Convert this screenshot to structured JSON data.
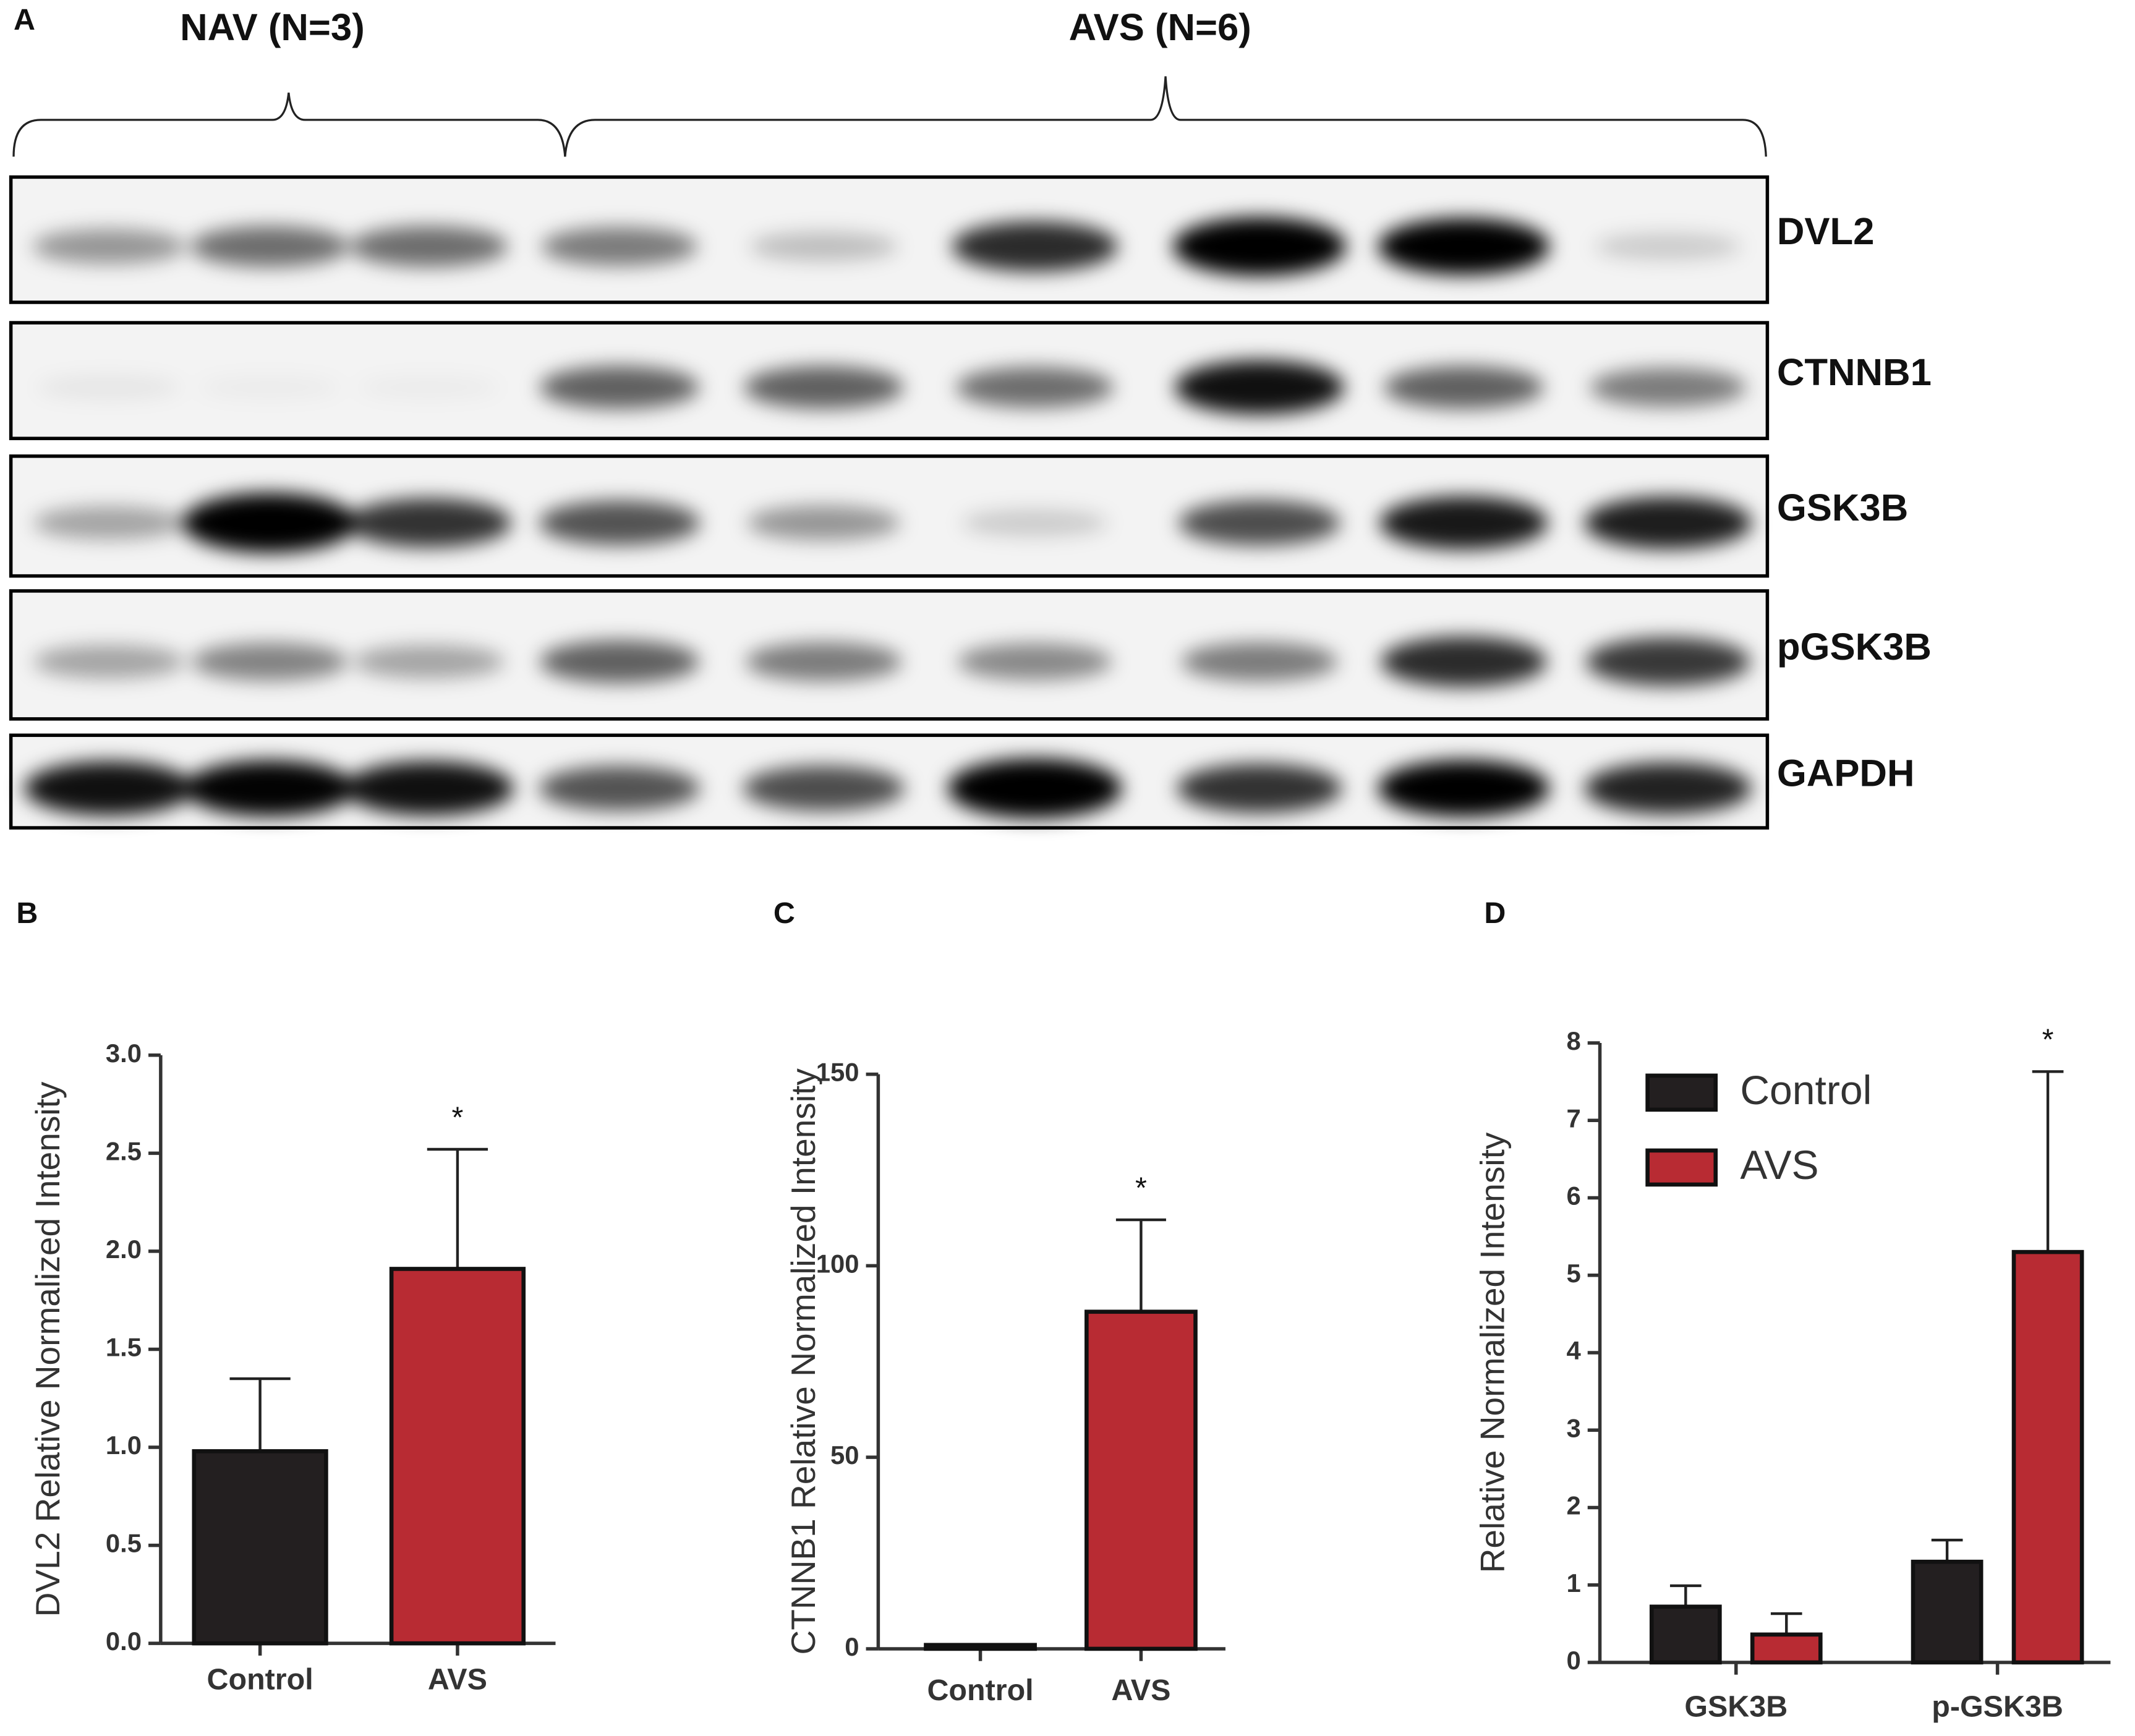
{
  "panel_a": {
    "letter": "A",
    "groups": [
      "NAV (N=3)",
      "AVS (N=6)"
    ],
    "proteins": [
      "DVL2",
      "CTNNB1",
      "GSK3B",
      "pGSK3B",
      "GAPDH"
    ]
  },
  "chart_data": [
    {
      "type": "bar",
      "panel": "B",
      "ylabel": "DVL2 Relative Normalized  Intensity",
      "categories": [
        "Control",
        "AVS"
      ],
      "values": [
        0.98,
        1.91
      ],
      "errors": [
        0.37,
        0.61
      ],
      "colors": [
        "#231f20",
        "#b82b33"
      ],
      "significance_marker": "*",
      "significant": [
        false,
        true
      ],
      "ylim": [
        0,
        3
      ],
      "yticks": [
        {
          "value": 0,
          "label": "0.0"
        },
        0.5,
        {
          "value": 1,
          "label": "1.0"
        },
        1.5,
        {
          "value": 2,
          "label": "2.0"
        },
        2.5,
        {
          "value": 3,
          "label": "3.0"
        }
      ]
    },
    {
      "type": "bar",
      "panel": "C",
      "ylabel": "CTNNB1 Relative Normalized Intensity",
      "categories": [
        "Control",
        "AVS"
      ],
      "values": [
        1,
        88
      ],
      "errors": [
        0,
        24
      ],
      "colors": [
        "#231f20",
        "#b82b33"
      ],
      "significance_marker": "*",
      "significant": [
        false,
        true
      ],
      "ylim": [
        0,
        150
      ],
      "yticks": [
        0,
        50,
        100,
        150
      ]
    },
    {
      "type": "grouped-bar",
      "panel": "D",
      "ylabel": "Relative Normalized Intensity",
      "categories": [
        "GSK3B",
        "p-GSK3B"
      ],
      "series": [
        {
          "name": "Control",
          "color": "#231f20",
          "values": [
            0.72,
            1.3
          ],
          "errors": [
            0.27,
            0.28
          ],
          "significant": [
            false,
            false
          ]
        },
        {
          "name": "AVS",
          "color": "#b82b33",
          "values": [
            0.36,
            5.3
          ],
          "errors": [
            0.27,
            2.33
          ],
          "significant": [
            false,
            true
          ]
        }
      ],
      "significance_marker": "*",
      "legend": "upper-left",
      "ylim": [
        0,
        8
      ],
      "yticks": [
        0,
        1,
        2,
        3,
        4,
        5,
        6,
        7,
        8
      ]
    }
  ]
}
